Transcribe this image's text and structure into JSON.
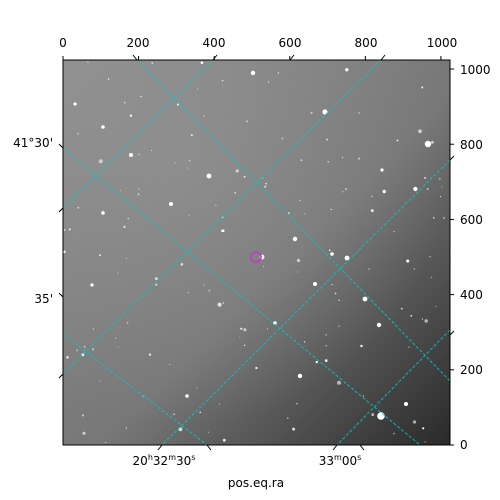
{
  "image": {
    "pixel_axis_top": {
      "ticks": [
        "0",
        "200",
        "400",
        "600",
        "800",
        "1000"
      ],
      "values": [
        0,
        200,
        400,
        600,
        800,
        1000
      ]
    },
    "pixel_axis_right": {
      "ticks": [
        "0",
        "200",
        "400",
        "600",
        "800",
        "1000"
      ],
      "values": [
        0,
        200,
        400,
        600,
        800,
        1000
      ]
    },
    "pixel_range": [
      0,
      1024
    ],
    "dec_axis_left": {
      "ticks": [
        "41°30'",
        "35'"
      ]
    },
    "ra_axis_bottom": {
      "ticks": [
        "20h32m30s",
        "33m00s"
      ],
      "tick1_parts": [
        "20",
        "h",
        "32",
        "m",
        "30",
        "s"
      ],
      "tick2_parts": [
        "33",
        "m",
        "00",
        "s"
      ]
    },
    "xlabel": "pos.eq.ra",
    "colors": {
      "grid": "#00c8c8",
      "marker": "#cc33cc",
      "background_light": "#8a8a8a",
      "background_dark": "#2e2e2e"
    },
    "marker_icon": "target-circle-icon"
  }
}
